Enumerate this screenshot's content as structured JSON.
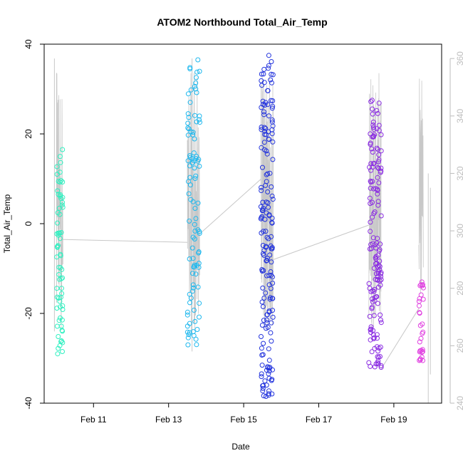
{
  "chart_data": {
    "type": "scatter",
    "title": "ATOM2 Northbound Total_Air_Temp",
    "xlabel": "Date",
    "ylabel": "Total_Air_Temp",
    "x_ticks": [
      "Feb 11",
      "Feb 13",
      "Feb 15",
      "Feb 17",
      "Feb 19"
    ],
    "xlim": [
      "2016-02-09 21:00",
      "2016-02-20 02:00"
    ],
    "ylim": [
      -40,
      40
    ],
    "y_ticks": [
      -40,
      -20,
      0,
      20,
      40
    ],
    "right_axis": {
      "ylim": [
        240,
        365
      ],
      "ticks": [
        240,
        260,
        280,
        300,
        320,
        340,
        360
      ],
      "color": "#bdbdbd"
    },
    "grid": false,
    "legend": "none",
    "line_color": "#c8c8c8",
    "series": [
      {
        "color": "#2ef0c0",
        "clusters": [
          {
            "start": "2016-02-10 00:30",
            "end": "2016-02-10 04:30",
            "ymin": -29,
            "ymax": 16.5,
            "n": 70
          }
        ]
      },
      {
        "color": "#1fb8ee",
        "clusters": [
          {
            "start": "2016-02-13 12:00",
            "end": "2016-02-13 20:00",
            "ymin": -27,
            "ymax": 36.5,
            "n": 100
          }
        ]
      },
      {
        "color": "#2233dd",
        "clusters": [
          {
            "start": "2016-02-15 11:00",
            "end": "2016-02-15 19:00",
            "ymin": -38.5,
            "ymax": 37.5,
            "n": 170
          }
        ]
      },
      {
        "color": "#8a2be2",
        "clusters": [
          {
            "start": "2016-02-18 08:00",
            "end": "2016-02-18 16:00",
            "ymin": -32,
            "ymax": 27.5,
            "n": 150
          }
        ]
      },
      {
        "color": "#e040e0",
        "clusters": [
          {
            "start": "2016-02-19 16:00",
            "end": "2016-02-19 19:00",
            "ymin": -30.5,
            "ymax": -13,
            "n": 30
          }
        ]
      }
    ],
    "line_segments": [
      {
        "start": "2016-02-10 03:00",
        "end": "2016-02-13 12:00",
        "y_start": 297,
        "y_end": 296
      },
      {
        "start": "2016-02-13 20:00",
        "end": "2016-02-15 11:00",
        "y_start": 299,
        "y_end": 318
      },
      {
        "start": "2016-02-15 19:00",
        "end": "2016-02-18 08:00",
        "y_start": 290,
        "y_end": 302
      },
      {
        "start": "2016-02-18 16:00",
        "end": "2016-02-19 16:00",
        "y_start": 252,
        "y_end": 273
      }
    ],
    "line_spikes": [
      {
        "at": "2016-02-09 23:00",
        "ymin": 265,
        "ymax": 360
      },
      {
        "at": "2016-02-13 15:00",
        "ymin": 258,
        "ymax": 360
      },
      {
        "at": "2016-02-19 22:00",
        "ymin": 240,
        "ymax": 320
      }
    ]
  }
}
